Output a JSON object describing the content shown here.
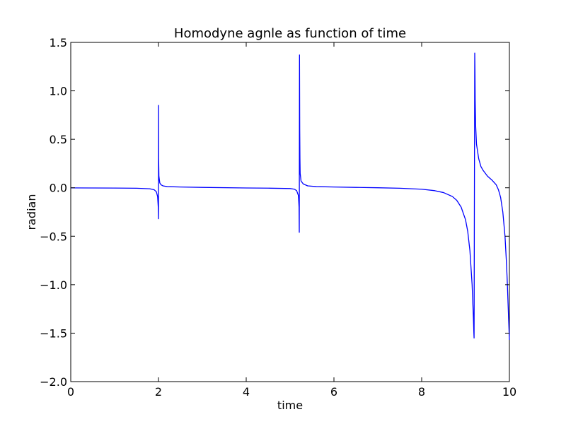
{
  "chart_data": {
    "type": "line",
    "title": "Homodyne agnle as function of time",
    "xlabel": "time",
    "ylabel": "radian",
    "xlim": [
      0,
      10
    ],
    "ylim": [
      -2.0,
      1.5
    ],
    "xticks": [
      0,
      2,
      4,
      6,
      8,
      10
    ],
    "xtick_labels": [
      "0",
      "2",
      "4",
      "6",
      "8",
      "10"
    ],
    "yticks": [
      -2.0,
      -1.5,
      -1.0,
      -0.5,
      0.0,
      0.5,
      1.0,
      1.5
    ],
    "ytick_labels": [
      "−2.0",
      "−1.5",
      "−1.0",
      "−0.5",
      "0.0",
      "0.5",
      "1.0",
      "1.5"
    ],
    "grid": false,
    "series": [
      {
        "color": "#0000ff",
        "x": [
          0,
          0.5,
          1.0,
          1.5,
          1.8,
          1.9,
          1.95,
          1.98,
          1.995,
          2.0,
          2.002,
          2.004,
          2.01,
          2.03,
          2.06,
          2.1,
          2.2,
          2.5,
          3.0,
          4.0,
          4.5,
          5.0,
          5.1,
          5.15,
          5.19,
          5.205,
          5.21,
          5.215,
          5.22,
          5.225,
          5.23,
          5.25,
          5.3,
          5.4,
          5.6,
          6.0,
          6.5,
          7.0,
          7.5,
          8.0,
          8.3,
          8.5,
          8.7,
          8.8,
          8.9,
          9.0,
          9.05,
          9.1,
          9.15,
          9.18,
          9.19,
          9.195,
          9.2,
          9.21,
          9.215,
          9.22,
          9.23,
          9.25,
          9.3,
          9.35,
          9.4,
          9.45,
          9.5,
          9.55,
          9.6,
          9.7,
          9.75,
          9.8,
          9.85,
          9.9,
          9.93,
          9.95,
          9.97,
          9.99,
          10.0
        ],
        "y": [
          -0.001,
          -0.002,
          -0.003,
          -0.005,
          -0.01,
          -0.02,
          -0.04,
          -0.09,
          -0.2,
          -0.32,
          0.85,
          0.3,
          0.12,
          0.05,
          0.03,
          0.02,
          0.012,
          0.008,
          0.004,
          -0.002,
          -0.004,
          -0.008,
          -0.015,
          -0.03,
          -0.08,
          -0.2,
          -0.46,
          1.37,
          0.6,
          0.3,
          0.15,
          0.07,
          0.04,
          0.02,
          0.012,
          0.008,
          0.004,
          0.0,
          -0.005,
          -0.015,
          -0.03,
          -0.05,
          -0.09,
          -0.13,
          -0.2,
          -0.33,
          -0.45,
          -0.65,
          -1.0,
          -1.35,
          -1.5,
          -1.55,
          -0.5,
          1.39,
          1.2,
          0.9,
          0.65,
          0.45,
          0.3,
          0.22,
          0.18,
          0.15,
          0.12,
          0.1,
          0.08,
          0.03,
          -0.02,
          -0.1,
          -0.25,
          -0.5,
          -0.75,
          -0.95,
          -1.2,
          -1.45,
          -1.57
        ]
      }
    ]
  }
}
